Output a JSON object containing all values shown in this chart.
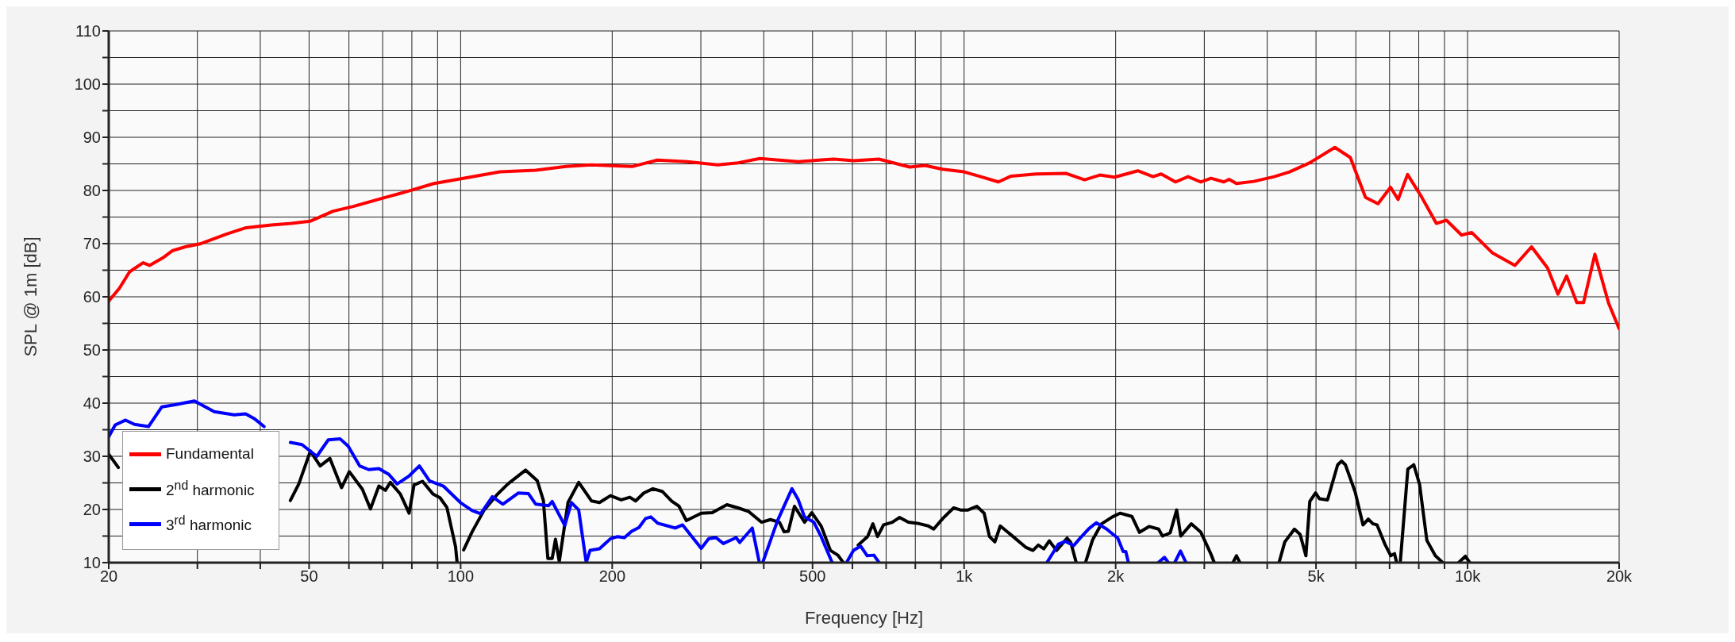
{
  "chart_data": {
    "type": "line",
    "xlabel": "Frequency [Hz]",
    "ylabel": "SPL @ 1m [dB]",
    "log": "x",
    "grid": true,
    "legend": "bottom left",
    "marker": "none",
    "line_style": "solid",
    "xlim": [
      20,
      20000
    ],
    "xticks": [
      20,
      {
        "value": 30,
        "label": null
      },
      {
        "value": 40,
        "label": null
      },
      50,
      {
        "value": 60,
        "label": null
      },
      {
        "value": 70,
        "label": null
      },
      {
        "value": 80,
        "label": null
      },
      {
        "value": 90,
        "label": null
      },
      100,
      200,
      {
        "value": 300,
        "label": null
      },
      {
        "value": 400,
        "label": null
      },
      500,
      {
        "value": 600,
        "label": null
      },
      {
        "value": 700,
        "label": null
      },
      {
        "value": 800,
        "label": null
      },
      {
        "value": 900,
        "label": null
      },
      {
        "value": 1000,
        "label": "1k"
      },
      {
        "value": 2000,
        "label": "2k"
      },
      {
        "value": 3000,
        "label": null
      },
      {
        "value": 4000,
        "label": null
      },
      {
        "value": 5000,
        "label": "5k"
      },
      {
        "value": 6000,
        "label": null
      },
      {
        "value": 7000,
        "label": null
      },
      {
        "value": 8000,
        "label": null
      },
      {
        "value": 9000,
        "label": null
      },
      {
        "value": 10000,
        "label": "10k"
      },
      {
        "value": 20000,
        "label": "20k"
      }
    ],
    "ylim": [
      10,
      110
    ],
    "yticks": [
      10,
      {
        "value": 15,
        "label": null
      },
      20,
      {
        "value": 25,
        "label": null
      },
      30,
      {
        "value": 35,
        "label": null
      },
      40,
      {
        "value": 45,
        "label": null
      },
      50,
      {
        "value": 55,
        "label": null
      },
      60,
      {
        "value": 65,
        "label": null
      },
      70,
      {
        "value": 75,
        "label": null
      },
      80,
      {
        "value": 85,
        "label": null
      },
      90,
      {
        "value": 95,
        "label": null
      },
      100,
      {
        "value": 105,
        "label": null
      },
      110
    ],
    "series": [
      {
        "name": "Fundamental",
        "color": "#ff0000",
        "x": [
          20,
          21,
          22,
          23.4,
          24.1,
          25.6,
          26.8,
          28.4,
          30.5,
          34.3,
          37.5,
          42.1,
          46.1,
          50.2,
          55.8,
          61.2,
          70.3,
          78.9,
          88.5,
          101.7,
          119.7,
          141,
          162,
          181.6,
          219,
          246,
          282,
          324,
          356,
          393,
          469,
          527,
          551,
          604,
          677,
          780,
          836,
          906,
          1000,
          1079,
          1170,
          1240,
          1390,
          1596,
          1735,
          1860,
          1990,
          2213,
          2373,
          2463,
          2630,
          2785,
          2950,
          3093,
          3280,
          3360,
          3475,
          3760,
          4130,
          4430,
          4860,
          5450,
          5850,
          6270,
          6640,
          7030,
          7280,
          7600,
          8090,
          8670,
          9080,
          9730,
          10190,
          11190,
          12420,
          13400,
          14420,
          15120,
          15730,
          16480,
          17000,
          17900,
          19060,
          20000
        ],
        "values": [
          59.2,
          61.6,
          64.7,
          66.4,
          65.9,
          67.3,
          68.7,
          69.4,
          70,
          71.8,
          73,
          73.5,
          73.8,
          74.2,
          76.1,
          77,
          78.6,
          79.9,
          81.3,
          82.3,
          83.5,
          83.8,
          84.5,
          84.8,
          84.5,
          85.7,
          85.4,
          84.8,
          85.2,
          86,
          85.4,
          85.8,
          85.9,
          85.6,
          85.9,
          84.4,
          84.7,
          84,
          83.5,
          82.6,
          81.6,
          82.7,
          83.1,
          83.2,
          82,
          82.9,
          82.5,
          83.7,
          82.6,
          83.1,
          81.6,
          82.6,
          81.6,
          82.3,
          81.6,
          82.1,
          81.3,
          81.7,
          82.6,
          83.5,
          85.2,
          88.1,
          86.2,
          78.7,
          77.5,
          80.6,
          78.3,
          83,
          78.9,
          73.8,
          74.4,
          71.6,
          72.1,
          68.3,
          65.9,
          69.4,
          65.4,
          60.5,
          63.9,
          58.9,
          58.9,
          68,
          58.8,
          54
        ]
      },
      {
        "name": "2$^{nd}$ harmonic",
        "color": "#000000",
        "x": [
          20,
          20.9,
          22,
          45,
          45.9,
          47.7,
          50.3,
          52.6,
          55,
          58,
          60.1,
          63.8,
          66.2,
          68.8,
          70.9,
          72.5,
          75.9,
          79,
          80.8,
          84,
          88.1,
          91,
          93.9,
          97.7,
          98.4,
          100,
          101.4,
          105.4,
          111.2,
          118.4,
          124.1,
          134.6,
          142,
          146,
          149,
          152,
          154.3,
          157,
          163.4,
          171.6,
          182,
          188.7,
          198.4,
          208.4,
          216.8,
          222.6,
          231.1,
          240.9,
          251.4,
          262.4,
          271.5,
          280.8,
          300.5,
          316,
          338,
          355.5,
          373.6,
          395.8,
          412.4,
          429.8,
          439,
          447.6,
          460.3,
          482.2,
          498.5,
          520,
          542.6,
          561.5,
          575.6,
          600,
          616,
          643,
          659,
          673,
          692,
          720,
          744,
          775,
          808,
          849,
          870,
          907,
          953,
          984,
          1018,
          1060,
          1096,
          1123,
          1151,
          1180,
          1240,
          1325,
          1370,
          1404,
          1440,
          1476,
          1526,
          1602,
          1629,
          1670,
          1700,
          1742,
          1800,
          1875,
          1970,
          2040,
          2154,
          2230,
          2330,
          2434,
          2478,
          2566,
          2644,
          2694,
          2826,
          2954,
          3089,
          3140,
          3300,
          3420,
          3475,
          3530,
          3700,
          4222,
          4335,
          4530,
          4650,
          4774,
          4860,
          4990,
          5080,
          5270,
          5520,
          5620,
          5720,
          5980,
          6200,
          6350,
          6490,
          6610,
          6850,
          7040,
          7160,
          7230,
          7300,
          7350,
          7610,
          7820,
          8030,
          8300,
          8630,
          8930,
          9300,
          9600,
          9900,
          10100
        ],
        "values": [
          30.4,
          27.9,
          null,
          null,
          21.7,
          24.8,
          31,
          28.2,
          29.6,
          24.1,
          27.1,
          23.8,
          20.1,
          24.4,
          23.6,
          25.1,
          22.9,
          19.3,
          24.6,
          25.3,
          22.9,
          22.2,
          20.4,
          13,
          10,
          null,
          12.4,
          15.8,
          19.8,
          22.9,
          24.8,
          27.4,
          25.4,
          21.7,
          10.8,
          10.8,
          14.4,
          10.2,
          21.3,
          25.1,
          21.6,
          21.3,
          22.6,
          21.8,
          22.3,
          21.6,
          23.1,
          23.9,
          23.4,
          21.6,
          20.6,
          17.9,
          19.3,
          19.4,
          20.9,
          20.3,
          19.6,
          17.6,
          18.1,
          17.6,
          15.8,
          15.9,
          20.6,
          17.6,
          19.4,
          16.9,
          12.3,
          11.4,
          10,
          null,
          13.3,
          14.9,
          17.3,
          14.9,
          17.1,
          17.6,
          18.5,
          17.6,
          17.4,
          16.9,
          16.3,
          18.3,
          20.3,
          19.9,
          19.9,
          20.6,
          19.3,
          14.9,
          13.9,
          16.9,
          15.2,
          12.9,
          12.3,
          13.3,
          12.6,
          14.1,
          12.3,
          14.6,
          13.8,
          10,
          null,
          10,
          14.3,
          17.3,
          18.6,
          19.3,
          18.7,
          15.7,
          16.8,
          16.3,
          15,
          15.6,
          19.9,
          15,
          17.3,
          15.7,
          11.7,
          10,
          null,
          10,
          11.3,
          10,
          null,
          10,
          13.9,
          16.3,
          15.3,
          11.3,
          21.5,
          23.1,
          22,
          21.8,
          28.4,
          29.1,
          28.4,
          23.3,
          17.1,
          18.2,
          17.3,
          17.1,
          13.5,
          11.3,
          11.7,
          10,
          null,
          10,
          27.6,
          28.4,
          24.7,
          14.2,
          11.3,
          10,
          null,
          10,
          11.2,
          10
        ]
      },
      {
        "name": "3$^{rd}$ harmonic",
        "color": "#0000ff",
        "x": [
          20,
          20.6,
          21.6,
          22.5,
          24,
          25.5,
          27.1,
          29.6,
          32.4,
          35.5,
          37.4,
          38.9,
          40.7,
          43,
          45.9,
          48.4,
          51.8,
          54.6,
          57.6,
          59.8,
          63,
          65.7,
          68.8,
          72,
          74.8,
          79,
          82.8,
          86.7,
          92.4,
          99.9,
          105.4,
          109.6,
          115.6,
          121.3,
          130.3,
          136.3,
          141,
          149.5,
          152,
          161,
          166,
          171.6,
          177.6,
          180.7,
          188.7,
          198.4,
          205,
          211.5,
          218.6,
          226,
          233,
          238.7,
          246.5,
          257.8,
          266.8,
          276,
          288,
          300.5,
          311,
          321.6,
          332.5,
          352.5,
          358.4,
          379.5,
          392,
          395,
          398,
          426,
          455,
          468,
          482,
          503,
          520,
          547,
          570,
          584,
          603,
          623,
          642,
          662,
          678,
          1000,
          1460,
          1540,
          1590,
          1650,
          1700,
          1770,
          1830,
          1920,
          2020,
          2070,
          2095,
          2120,
          2300,
          2430,
          2500,
          2545,
          2580,
          2620,
          2690,
          2760
        ],
        "values": [
          33.7,
          35.9,
          36.8,
          36,
          35.6,
          39.3,
          39.7,
          40.4,
          38.4,
          37.8,
          38,
          37.1,
          35.6,
          null,
          32.6,
          32.2,
          30,
          33.1,
          33.3,
          31.9,
          28.2,
          27.5,
          27.7,
          26.6,
          24.8,
          26.3,
          28.2,
          25.4,
          24.4,
          21.3,
          19.8,
          19.2,
          22.4,
          21,
          23.1,
          23,
          21,
          20.7,
          21.5,
          17,
          21.3,
          19.9,
          10,
          12.3,
          12.6,
          14.5,
          14.9,
          14.7,
          15.9,
          16.6,
          18.3,
          18.6,
          17.4,
          16.9,
          16.5,
          17.1,
          14.9,
          12.7,
          14.5,
          14.7,
          13.6,
          14.7,
          13.8,
          16.5,
          10,
          null,
          10,
          17.9,
          23.9,
          21.9,
          18.6,
          17.6,
          14.9,
          10,
          null,
          10,
          12.3,
          13.1,
          11.3,
          11.4,
          10,
          null,
          10,
          13.5,
          14,
          13.2,
          14.6,
          16.4,
          17.5,
          16.3,
          14.6,
          12.1,
          12.1,
          10,
          null,
          10,
          11,
          10,
          null,
          10,
          12.2,
          10
        ]
      }
    ]
  }
}
